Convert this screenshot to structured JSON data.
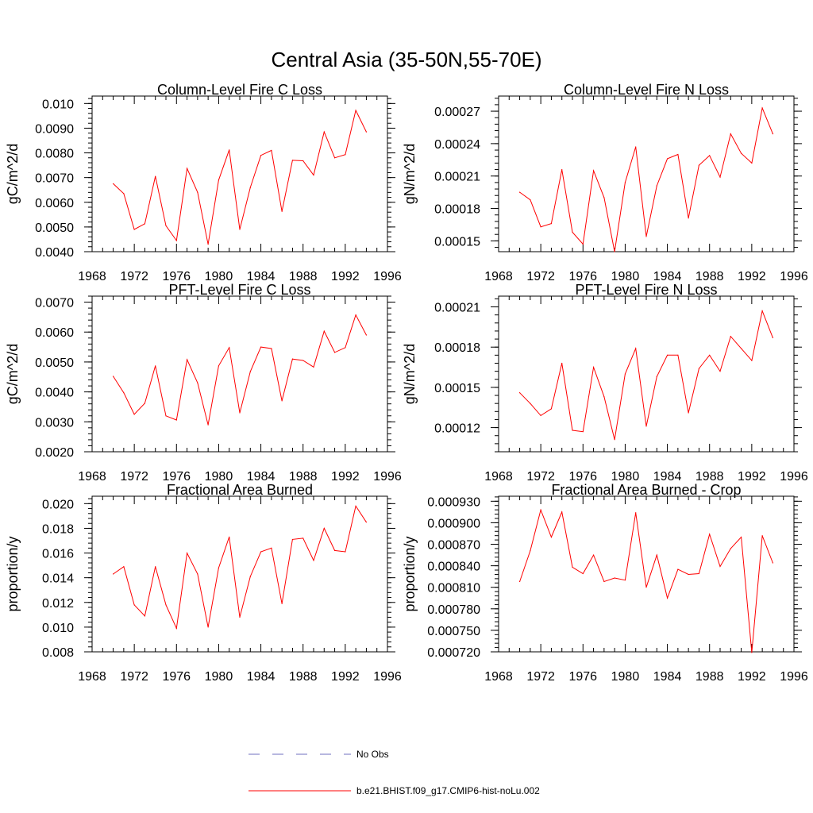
{
  "figure": {
    "title": "Central Asia (35-50N,55-70E)"
  },
  "legend": {
    "entries": [
      {
        "label": "No Obs",
        "color": "#6f6fbf",
        "dash": true
      },
      {
        "label": "b.e21.BHIST.f09_g17.CMIP6-hist-noLu.002",
        "color": "#ff0000",
        "dash": false
      }
    ]
  },
  "chart_data": [
    {
      "type": "line",
      "title": "Column-Level Fire C Loss",
      "ylabel": "gC/m^2/d",
      "xlabel": "",
      "xlim": [
        1968,
        1996
      ],
      "ylim": [
        0.004,
        0.0103
      ],
      "xticks": [
        "1968",
        "1972",
        "1976",
        "1980",
        "1984",
        "1988",
        "1992",
        "1996"
      ],
      "xtick_values": [
        1968,
        1972,
        1976,
        1980,
        1984,
        1988,
        1992,
        1996
      ],
      "yticks": [
        "0.0040",
        "0.0050",
        "0.0060",
        "0.0070",
        "0.0080",
        "0.0090",
        "0.010"
      ],
      "ytick_values": [
        0.004,
        0.005,
        0.006,
        0.007,
        0.008,
        0.009,
        0.01
      ],
      "x": [
        1970,
        1971,
        1972,
        1973,
        1974,
        1975,
        1976,
        1977,
        1978,
        1979,
        1980,
        1981,
        1982,
        1983,
        1984,
        1985,
        1986,
        1987,
        1988,
        1989,
        1990,
        1991,
        1992,
        1993,
        1994
      ],
      "series": [
        {
          "name": "b.e21.BHIST.f09_g17.CMIP6-hist-noLu.002",
          "color": "#ff0000",
          "values": [
            0.00675,
            0.00635,
            0.0049,
            0.00513,
            0.00705,
            0.00505,
            0.00445,
            0.00737,
            0.0064,
            0.0043,
            0.0069,
            0.00812,
            0.0049,
            0.0066,
            0.0079,
            0.0081,
            0.00563,
            0.0077,
            0.00768,
            0.0071,
            0.00885,
            0.0078,
            0.00793,
            0.00972,
            0.00885
          ]
        }
      ]
    },
    {
      "type": "line",
      "title": "Column-Level Fire N Loss",
      "ylabel": "gN/m^2/d",
      "xlabel": "",
      "xlim": [
        1968,
        1996
      ],
      "ylim": [
        0.00014,
        0.000284
      ],
      "xticks": [
        "1968",
        "1972",
        "1976",
        "1980",
        "1984",
        "1988",
        "1992",
        "1996"
      ],
      "xtick_values": [
        1968,
        1972,
        1976,
        1980,
        1984,
        1988,
        1992,
        1996
      ],
      "yticks": [
        "0.00015",
        "0.00018",
        "0.00021",
        "0.00024",
        "0.00027"
      ],
      "ytick_values": [
        0.00015,
        0.00018,
        0.00021,
        0.00024,
        0.00027
      ],
      "x": [
        1970,
        1971,
        1972,
        1973,
        1974,
        1975,
        1976,
        1977,
        1978,
        1979,
        1980,
        1981,
        1982,
        1983,
        1984,
        1985,
        1986,
        1987,
        1988,
        1989,
        1990,
        1991,
        1992,
        1993,
        1994
      ],
      "series": [
        {
          "name": "b.e21.BHIST.f09_g17.CMIP6-hist-noLu.002",
          "color": "#ff0000",
          "values": [
            0.000195,
            0.000188,
            0.000163,
            0.000166,
            0.000216,
            0.000158,
            0.000147,
            0.000215,
            0.00019,
            0.00014,
            0.000204,
            0.000237,
            0.000154,
            0.000201,
            0.000226,
            0.00023,
            0.000171,
            0.00022,
            0.000229,
            0.000209,
            0.000249,
            0.000231,
            0.000222,
            0.000273,
            0.000249
          ]
        }
      ]
    },
    {
      "type": "line",
      "title": "PFT-Level Fire C Loss",
      "ylabel": "gC/m^2/d",
      "xlabel": "",
      "xlim": [
        1968,
        1996
      ],
      "ylim": [
        0.002,
        0.0072
      ],
      "xticks": [
        "1968",
        "1972",
        "1976",
        "1980",
        "1984",
        "1988",
        "1992",
        "1996"
      ],
      "xtick_values": [
        1968,
        1972,
        1976,
        1980,
        1984,
        1988,
        1992,
        1996
      ],
      "yticks": [
        "0.0020",
        "0.0030",
        "0.0040",
        "0.0050",
        "0.0060",
        "0.0070"
      ],
      "ytick_values": [
        0.002,
        0.003,
        0.004,
        0.005,
        0.006,
        0.007
      ],
      "x": [
        1970,
        1971,
        1972,
        1973,
        1974,
        1975,
        1976,
        1977,
        1978,
        1979,
        1980,
        1981,
        1982,
        1983,
        1984,
        1985,
        1986,
        1987,
        1988,
        1989,
        1990,
        1991,
        1992,
        1993,
        1994
      ],
      "series": [
        {
          "name": "b.e21.BHIST.f09_g17.CMIP6-hist-noLu.002",
          "color": "#ff0000",
          "values": [
            0.00452,
            0.00397,
            0.00325,
            0.00362,
            0.00487,
            0.0032,
            0.00306,
            0.00508,
            0.0043,
            0.0029,
            0.00487,
            0.00548,
            0.0033,
            0.00468,
            0.0055,
            0.00545,
            0.0037,
            0.0051,
            0.00505,
            0.00483,
            0.00603,
            0.00532,
            0.00548,
            0.00657,
            0.0059
          ]
        }
      ]
    },
    {
      "type": "line",
      "title": "PFT-Level Fire N Loss",
      "ylabel": "gN/m^2/d",
      "xlabel": "",
      "xlim": [
        1968,
        1996
      ],
      "ylim": [
        0.000102,
        0.000218
      ],
      "xticks": [
        "1968",
        "1972",
        "1976",
        "1980",
        "1984",
        "1988",
        "1992",
        "1996"
      ],
      "xtick_values": [
        1968,
        1972,
        1976,
        1980,
        1984,
        1988,
        1992,
        1996
      ],
      "yticks": [
        "0.00012",
        "0.00015",
        "0.00018",
        "0.00021"
      ],
      "ytick_values": [
        0.00012,
        0.00015,
        0.00018,
        0.00021
      ],
      "x": [
        1970,
        1971,
        1972,
        1973,
        1974,
        1975,
        1976,
        1977,
        1978,
        1979,
        1980,
        1981,
        1982,
        1983,
        1984,
        1985,
        1986,
        1987,
        1988,
        1989,
        1990,
        1991,
        1992,
        1993,
        1994
      ],
      "series": [
        {
          "name": "b.e21.BHIST.f09_g17.CMIP6-hist-noLu.002",
          "color": "#ff0000",
          "values": [
            0.000146,
            0.000138,
            0.000129,
            0.000134,
            0.000168,
            0.000118,
            0.000117,
            0.000165,
            0.000143,
            0.000111,
            0.00016,
            0.000179,
            0.000121,
            0.000158,
            0.000174,
            0.000174,
            0.000131,
            0.000164,
            0.000174,
            0.000162,
            0.000188,
            0.000179,
            0.00017,
            0.000207,
            0.000187
          ]
        }
      ]
    },
    {
      "type": "line",
      "title": "Fractional Area Burned",
      "ylabel": "proportion/y",
      "xlabel": "",
      "xlim": [
        1968,
        1996
      ],
      "ylim": [
        0.008,
        0.0206
      ],
      "xticks": [
        "1968",
        "1972",
        "1976",
        "1980",
        "1984",
        "1988",
        "1992",
        "1996"
      ],
      "xtick_values": [
        1968,
        1972,
        1976,
        1980,
        1984,
        1988,
        1992,
        1996
      ],
      "yticks": [
        "0.008",
        "0.010",
        "0.012",
        "0.014",
        "0.016",
        "0.018",
        "0.020"
      ],
      "ytick_values": [
        0.008,
        0.01,
        0.012,
        0.014,
        0.016,
        0.018,
        0.02
      ],
      "x": [
        1970,
        1971,
        1972,
        1973,
        1974,
        1975,
        1976,
        1977,
        1978,
        1979,
        1980,
        1981,
        1982,
        1983,
        1984,
        1985,
        1986,
        1987,
        1988,
        1989,
        1990,
        1991,
        1992,
        1993,
        1994
      ],
      "series": [
        {
          "name": "b.e21.BHIST.f09_g17.CMIP6-hist-noLu.002",
          "color": "#ff0000",
          "values": [
            0.0143,
            0.0149,
            0.0118,
            0.0109,
            0.0149,
            0.0118,
            0.0099,
            0.016,
            0.0143,
            0.01,
            0.0148,
            0.0173,
            0.0108,
            0.0141,
            0.0161,
            0.0164,
            0.0119,
            0.0171,
            0.0172,
            0.0154,
            0.018,
            0.0162,
            0.0161,
            0.0198,
            0.0185
          ]
        }
      ]
    },
    {
      "type": "line",
      "title": "Fractional Area Burned - Crop",
      "ylabel": "proportion/y",
      "xlabel": "",
      "xlim": [
        1968,
        1996
      ],
      "ylim": [
        0.00072,
        0.000937
      ],
      "xticks": [
        "1968",
        "1972",
        "1976",
        "1980",
        "1984",
        "1988",
        "1992",
        "1996"
      ],
      "xtick_values": [
        1968,
        1972,
        1976,
        1980,
        1984,
        1988,
        1992,
        1996
      ],
      "yticks": [
        "0.000720",
        "0.000750",
        "0.000780",
        "0.000810",
        "0.000840",
        "0.000870",
        "0.000900",
        "0.000930"
      ],
      "ytick_values": [
        0.00072,
        0.00075,
        0.00078,
        0.00081,
        0.00084,
        0.00087,
        0.0009,
        0.00093
      ],
      "x": [
        1970,
        1971,
        1972,
        1973,
        1974,
        1975,
        1976,
        1977,
        1978,
        1979,
        1980,
        1981,
        1982,
        1983,
        1984,
        1985,
        1986,
        1987,
        1988,
        1989,
        1990,
        1991,
        1992,
        1993,
        1994
      ],
      "series": [
        {
          "name": "b.e21.BHIST.f09_g17.CMIP6-hist-noLu.002",
          "color": "#ff0000",
          "values": [
            0.000818,
            0.000861,
            0.000918,
            0.00088,
            0.000915,
            0.000838,
            0.000829,
            0.000855,
            0.000818,
            0.000823,
            0.00082,
            0.000914,
            0.00081,
            0.000855,
            0.000795,
            0.000835,
            0.000828,
            0.000829,
            0.000884,
            0.000839,
            0.000864,
            0.00088,
            0.000719,
            0.000882,
            0.000844
          ]
        }
      ]
    }
  ]
}
